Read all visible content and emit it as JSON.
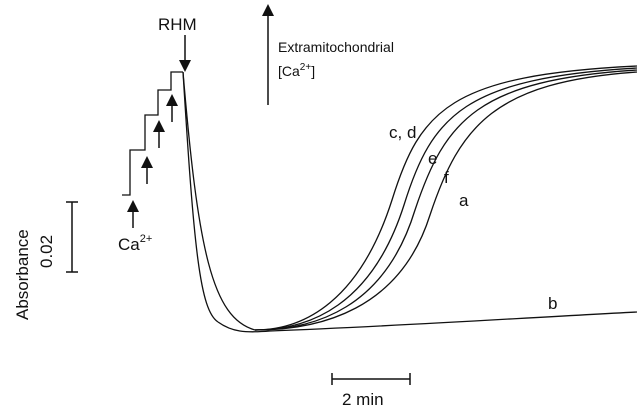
{
  "labels": {
    "rhm": "RHM",
    "extra": "Extramitochondrial",
    "ca_bracket": {
      "base": "[Ca",
      "sup": "2+",
      "end": "]"
    },
    "cd": "c, d",
    "e": "e",
    "f": "f",
    "a": "a",
    "b": "b",
    "absorbance": "Absorbance",
    "abs_scale": "0.02",
    "ca_add": {
      "base": "Ca",
      "sup": "2+"
    },
    "time_scale": "2 min"
  }
}
